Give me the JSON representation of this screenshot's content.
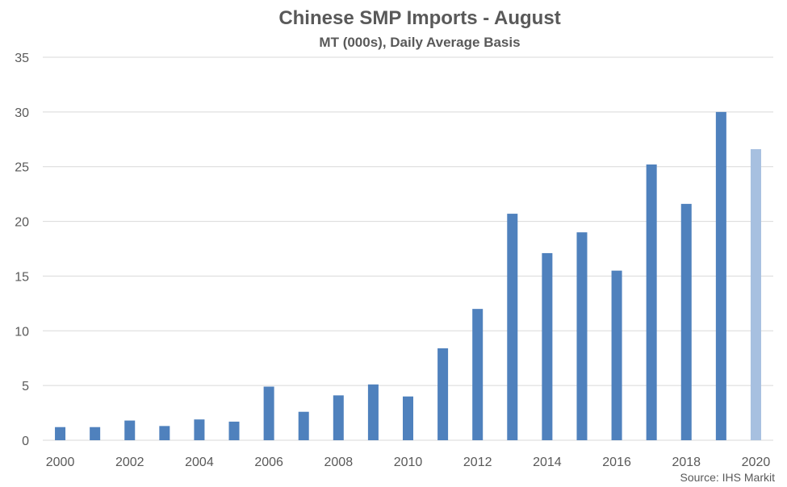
{
  "chart_data": {
    "type": "bar",
    "title": "Chinese SMP Imports - August",
    "subtitle": "MT (000s), Daily Average Basis",
    "source": "Source: IHS Markit",
    "categories": [
      "2000",
      "2001",
      "2002",
      "2003",
      "2004",
      "2005",
      "2006",
      "2007",
      "2008",
      "2009",
      "2010",
      "2011",
      "2012",
      "2013",
      "2014",
      "2015",
      "2016",
      "2017",
      "2018",
      "2019",
      "2020"
    ],
    "x_tick_labels": [
      "2000",
      "2002",
      "2004",
      "2006",
      "2008",
      "2010",
      "2012",
      "2014",
      "2016",
      "2018",
      "2020"
    ],
    "values": [
      1.2,
      1.2,
      1.8,
      1.3,
      1.9,
      1.7,
      4.9,
      2.6,
      4.1,
      5.1,
      4.0,
      8.4,
      12.0,
      20.7,
      17.1,
      19.0,
      15.5,
      25.2,
      21.6,
      30.0,
      26.6
    ],
    "ylim": [
      0,
      35
    ],
    "y_ticks": [
      0,
      5,
      10,
      15,
      20,
      25,
      30,
      35
    ],
    "grid": true,
    "legend": "none",
    "colors": {
      "bar": "#4f81bd",
      "highlight_bar": "#a7c0e0",
      "grid": "#d9d9d9",
      "text": "#595959"
    },
    "highlight_index": 20
  }
}
